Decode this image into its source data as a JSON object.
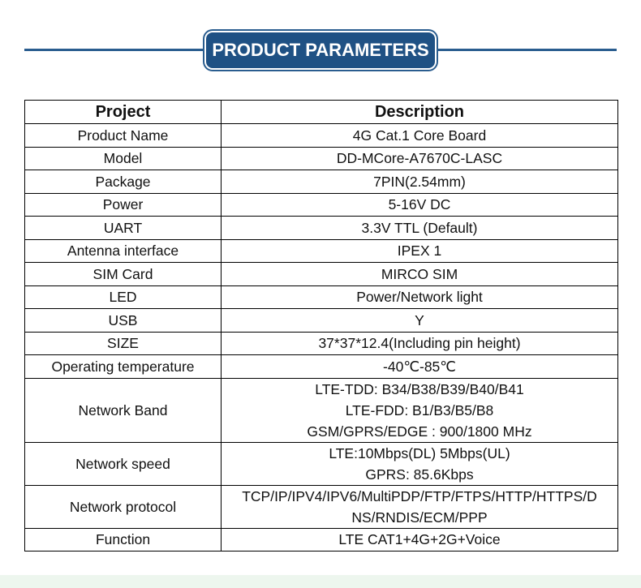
{
  "header": {
    "title": "PRODUCT PARAMETERS"
  },
  "table": {
    "columns": [
      "Project",
      "Description"
    ],
    "rows": [
      {
        "project": "Product Name",
        "description": [
          "4G Cat.1 Core Board"
        ]
      },
      {
        "project": "Model",
        "description": [
          "DD-MCore-A7670C-LASC"
        ]
      },
      {
        "project": "Package",
        "description": [
          "7PIN(2.54mm)"
        ]
      },
      {
        "project": "Power",
        "description": [
          "5-16V DC"
        ]
      },
      {
        "project": "UART",
        "description": [
          "3.3V TTL (Default)"
        ]
      },
      {
        "project": "Antenna interface",
        "description": [
          "IPEX 1"
        ]
      },
      {
        "project": "SIM Card",
        "description": [
          "MIRCO SIM"
        ]
      },
      {
        "project": "LED",
        "description": [
          "Power/Network light"
        ]
      },
      {
        "project": "USB",
        "description": [
          "Y"
        ]
      },
      {
        "project": "SIZE",
        "description": [
          "37*37*12.4(Including pin height)"
        ]
      },
      {
        "project": "Operating temperature",
        "description": [
          "-40℃-85℃"
        ]
      },
      {
        "project": "Network Band",
        "description": [
          "LTE-TDD:  B34/B38/B39/B40/B41",
          "LTE-FDD:  B1/B3/B5/B8",
          "GSM/GPRS/EDGE :  900/1800 MHz"
        ]
      },
      {
        "project": "Network speed",
        "description": [
          "LTE:10Mbps(DL)  5Mbps(UL)",
          "GPRS: 85.6Kbps"
        ]
      },
      {
        "project": "Network protocol",
        "description": [
          "TCP/IP/IPV4/IPV6/MultiPDP/FTP/FTPS/HTTP/HTTPS/D",
          "NS/RNDIS/ECM/PPP"
        ]
      },
      {
        "project": "Function",
        "description": [
          "LTE CAT1+4G+2G+Voice"
        ]
      }
    ]
  },
  "colors": {
    "banner": "#1f5184",
    "banner_line": "#2a5d8f",
    "footer_strip": "#edf6ee"
  }
}
